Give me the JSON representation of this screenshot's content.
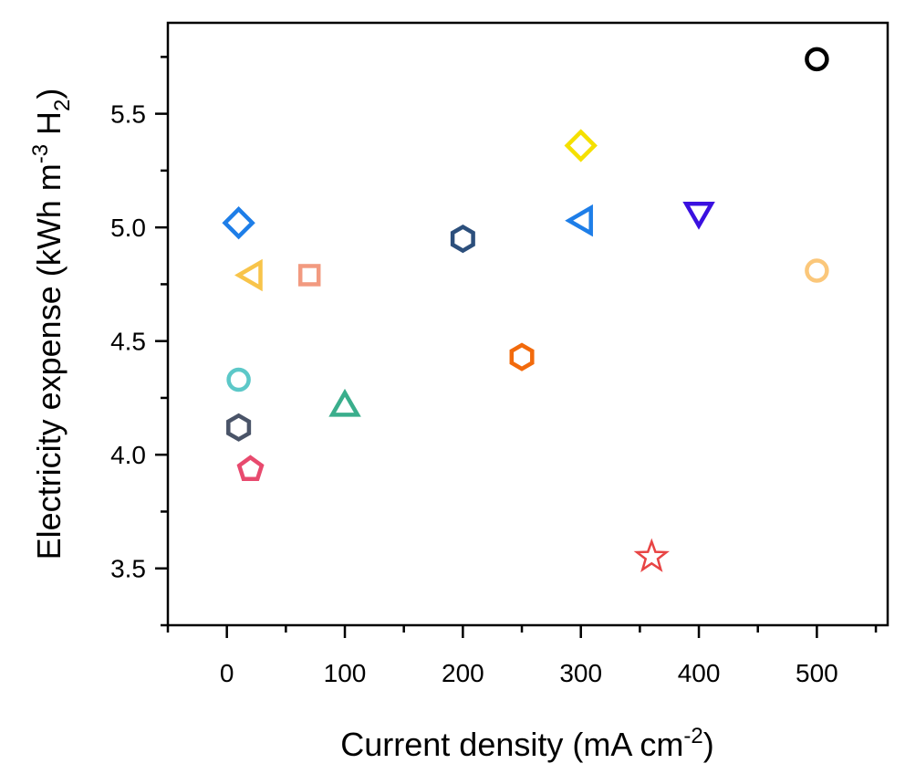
{
  "chart_data": {
    "type": "scatter",
    "title": "",
    "xlabel": "Current density (mA cm",
    "xlabel_sup": "-2",
    "xlabel_end": ")",
    "ylabel": "Electricity expense (kWh m",
    "ylabel_sup": "-3",
    "ylabel_mid": " H",
    "ylabel_sub": "2",
    "ylabel_end": ")",
    "xlim": [
      -50,
      560
    ],
    "ylim": [
      3.25,
      5.9
    ],
    "x_ticks": [
      0,
      100,
      200,
      300,
      400,
      500
    ],
    "x_tick_labels": [
      "0",
      "100",
      "200",
      "300",
      "400",
      "500"
    ],
    "x_minor_ticks": [
      -50,
      50,
      150,
      250,
      350,
      450,
      550
    ],
    "y_ticks": [
      3.5,
      4.0,
      4.5,
      5.0,
      5.5
    ],
    "y_tick_labels": [
      "3.5",
      "4.0",
      "4.5",
      "5.0",
      "5.5"
    ],
    "y_minor_ticks": [
      3.25,
      3.75,
      4.25,
      4.75,
      5.25,
      5.75
    ],
    "points": [
      {
        "x": 500,
        "y": 5.74,
        "marker": "circle",
        "color": "#000000"
      },
      {
        "x": 300,
        "y": 5.36,
        "marker": "diamond",
        "color": "#f5e000"
      },
      {
        "x": 10,
        "y": 5.02,
        "marker": "diamond",
        "color": "#1e7ee8"
      },
      {
        "x": 300,
        "y": 5.03,
        "marker": "triangle-left",
        "color": "#1e7ee8"
      },
      {
        "x": 400,
        "y": 5.06,
        "marker": "triangle-down",
        "color": "#3a10e0"
      },
      {
        "x": 200,
        "y": 4.95,
        "marker": "hexagon",
        "color": "#2c4f7c"
      },
      {
        "x": 20,
        "y": 4.79,
        "marker": "triangle-left",
        "color": "#f8c44a"
      },
      {
        "x": 70,
        "y": 4.79,
        "marker": "square",
        "color": "#f29a80"
      },
      {
        "x": 500,
        "y": 4.81,
        "marker": "circle",
        "color": "#fbc77a"
      },
      {
        "x": 250,
        "y": 4.43,
        "marker": "hexagon",
        "color": "#f26a0c"
      },
      {
        "x": 10,
        "y": 4.33,
        "marker": "circle",
        "color": "#5cc8c8"
      },
      {
        "x": 100,
        "y": 4.22,
        "marker": "triangle-up",
        "color": "#3aae8c"
      },
      {
        "x": 10,
        "y": 4.12,
        "marker": "hexagon",
        "color": "#4a5468"
      },
      {
        "x": 20,
        "y": 3.94,
        "marker": "pentagon",
        "color": "#e84a6e"
      },
      {
        "x": 360,
        "y": 3.55,
        "marker": "star",
        "color": "#e84444"
      }
    ]
  }
}
